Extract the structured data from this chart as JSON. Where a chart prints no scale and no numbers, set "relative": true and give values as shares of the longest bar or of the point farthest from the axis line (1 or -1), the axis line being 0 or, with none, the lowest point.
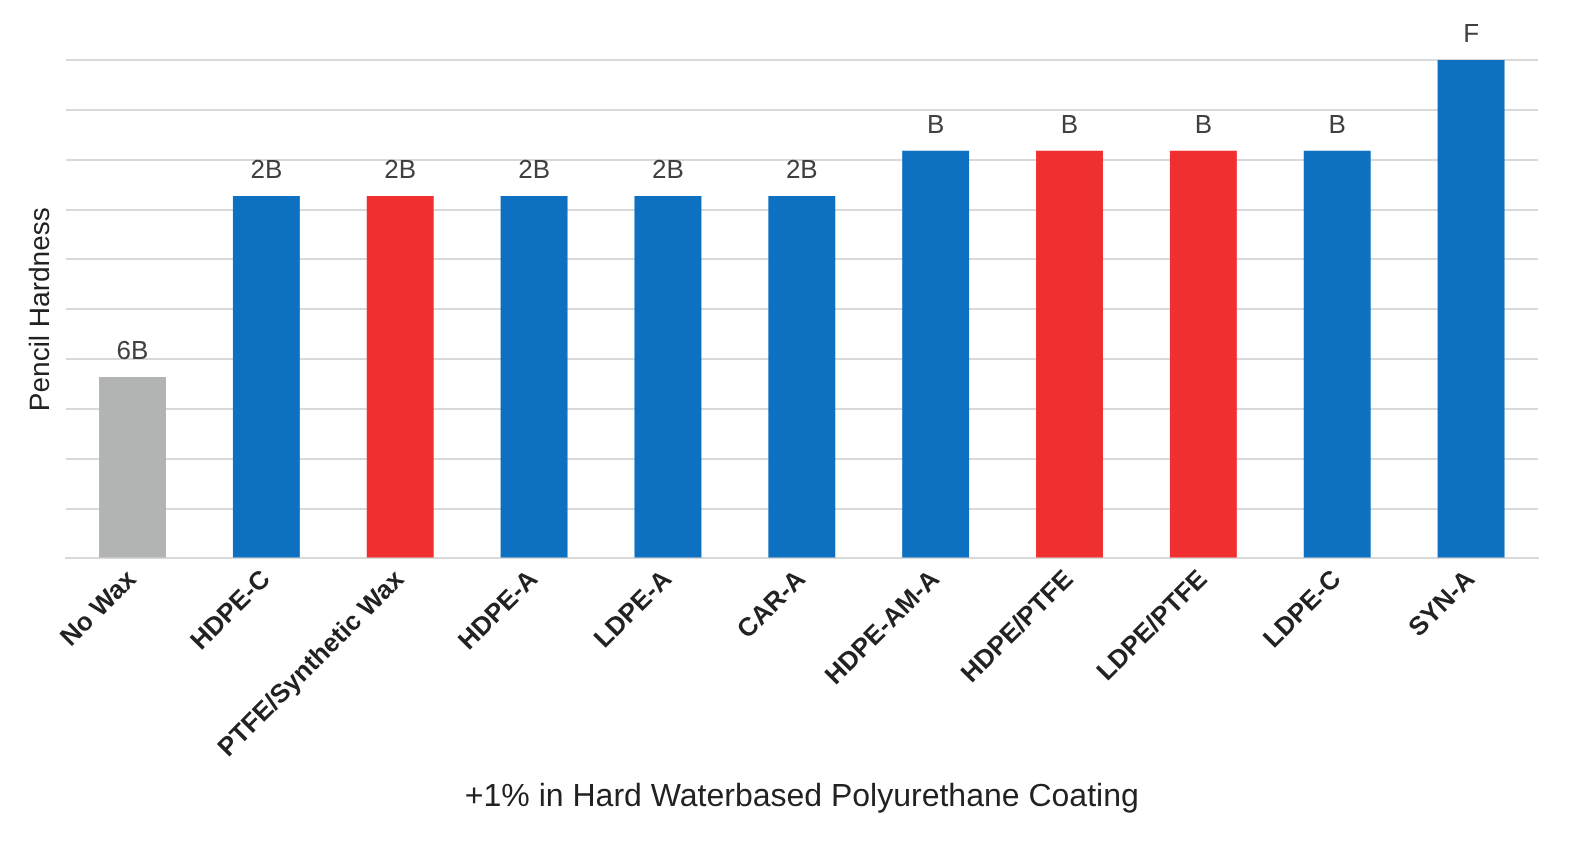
{
  "chart_data": {
    "type": "bar",
    "xlabel": "+1% in Hard Waterbased Polyurethane Coating",
    "ylabel": "Pencil Hardness",
    "categories": [
      "No Wax",
      "HDPE-C",
      "PTFE/Synthetic Wax",
      "HDPE-A",
      "LDPE-A",
      "CAR-A",
      "HDPE-AM-A",
      "HDPE/PTFE",
      "LDPE/PTFE",
      "LDPE-C",
      "SYN-A"
    ],
    "relative": true,
    "values": [
      0.364,
      0.727,
      0.727,
      0.727,
      0.727,
      0.727,
      0.818,
      0.818,
      0.818,
      0.818,
      1
    ],
    "colors": [
      "#b2b4b4",
      "#0e70c0",
      "#f03030",
      "#0e70c0",
      "#0e70c0",
      "#0e70c0",
      "#0e70c0",
      "#f03030",
      "#f03030",
      "#0e70c0",
      "#0e70c0"
    ],
    "annotations": [
      {
        "text": "6B",
        "x": "No Wax",
        "y": 0.364
      },
      {
        "text": "2B",
        "x": "HDPE-C",
        "y": 0.727
      },
      {
        "text": "2B",
        "x": "PTFE/Synthetic Wax",
        "y": 0.727
      },
      {
        "text": "2B",
        "x": "HDPE-A",
        "y": 0.727
      },
      {
        "text": "2B",
        "x": "LDPE-A",
        "y": 0.727
      },
      {
        "text": "2B",
        "x": "CAR-A",
        "y": 0.727
      },
      {
        "text": "B",
        "x": "HDPE-AM-A",
        "y": 0.818
      },
      {
        "text": "B",
        "x": "HDPE/PTFE",
        "y": 0.818
      },
      {
        "text": "B",
        "x": "LDPE/PTFE",
        "y": 0.818
      },
      {
        "text": "B",
        "x": "LDPE-C",
        "y": 0.818
      },
      {
        "text": "F",
        "x": "SYN-A",
        "y": 1
      }
    ],
    "grid": "y",
    "legend": false
  }
}
